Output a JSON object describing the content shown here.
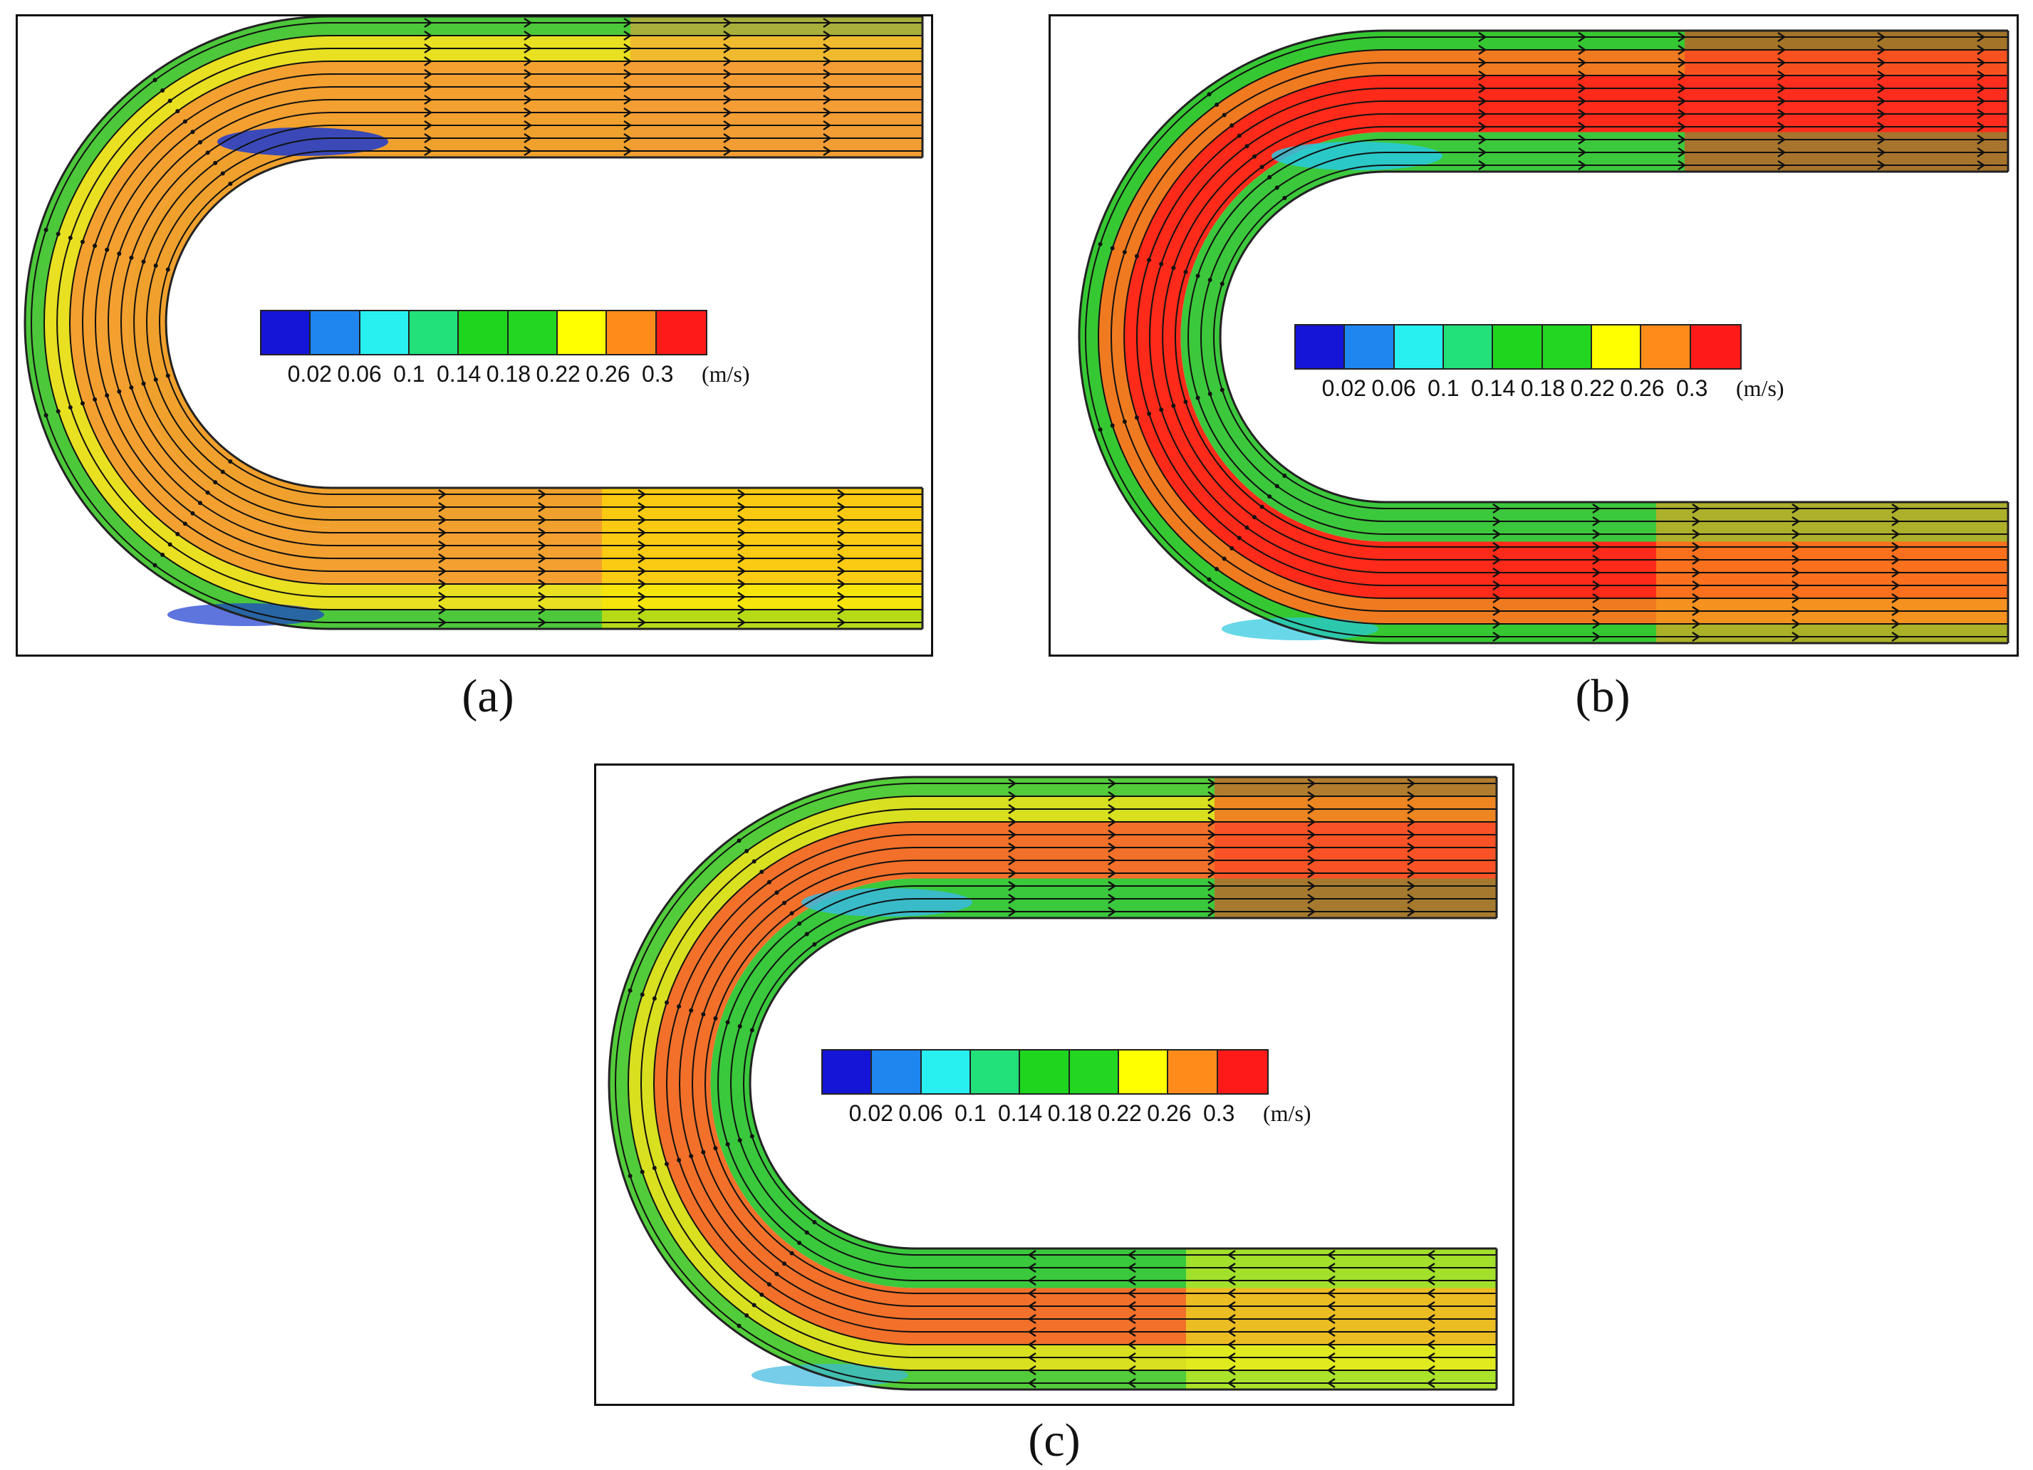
{
  "legend": {
    "colors": [
      "#1515d8",
      "#1f86f0",
      "#28f0f0",
      "#22e07a",
      "#1fd61f",
      "#22d622",
      "#ffff00",
      "#ff8c1a",
      "#ff1a1a"
    ],
    "ticks": [
      "0.02",
      "0.06",
      "0.1",
      "0.14",
      "0.18",
      "0.22",
      "0.26",
      "0.3"
    ],
    "unit": "(m/s)"
  },
  "panels": [
    {
      "caption": "(a)",
      "flow_colors": {
        "outer_wall": "#4cc83a",
        "outer_mid": "#e8e020",
        "core": "#f4a030",
        "inner": "#f0a02c",
        "inlet": "#ffe600",
        "outlet": "#f49a3a",
        "separation": "#1a3ad0"
      }
    },
    {
      "caption": "(b)",
      "flow_colors": {
        "outer_wall": "#36c832",
        "outer_mid": "#f07a20",
        "core": "#ff2a1a",
        "inner": "#3cc83c",
        "inlet": "#f8a020",
        "outlet": "#ff3020",
        "separation": "#28c8e0"
      }
    },
    {
      "caption": "(c)",
      "flow_colors": {
        "outer_wall": "#52cc3a",
        "outer_mid": "#d8e020",
        "core": "#f2702a",
        "inner": "#3ac83c",
        "inlet": "#e8f020",
        "outlet": "#ff3a22",
        "separation": "#3ab8e0"
      }
    }
  ]
}
